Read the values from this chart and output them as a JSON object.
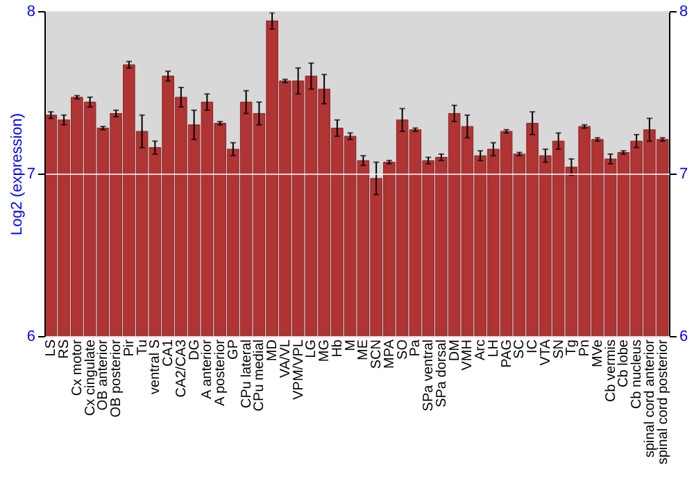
{
  "chart_data": {
    "type": "bar",
    "ylabel": "Log2 (expression)",
    "categories": [
      "LS",
      "RS",
      "Cx motor",
      "Cx cingulate",
      "OB anterior",
      "OB posterior",
      "Pir",
      "Tu",
      "ventral S",
      "CA1",
      "CA2/CA3",
      "DG",
      "A anterior",
      "A posterior",
      "GP",
      "CPu lateral",
      "CPu medial",
      "MD",
      "VA/VL",
      "VPM/VPL",
      "LG",
      "MG",
      "Hb",
      "M",
      "ME",
      "SCN",
      "MPA",
      "SO",
      "Pa",
      "SPa ventral",
      "SPa dorsal",
      "DM",
      "VMH",
      "Arc",
      "LH",
      "PAG",
      "SC",
      "IC",
      "VTA",
      "SN",
      "Tg",
      "Pn",
      "MVe",
      "Cb vermis",
      "Cb lobe",
      "Cb nucleus",
      "spinal cord anterior",
      "spinal cord posterior"
    ],
    "series": [
      {
        "color": "#b03434",
        "values": [
          7.36,
          7.33,
          7.47,
          7.44,
          7.28,
          7.37,
          7.67,
          7.26,
          7.16,
          7.6,
          7.47,
          7.3,
          7.44,
          7.31,
          7.15,
          7.44,
          7.37,
          7.94,
          7.57,
          7.57,
          7.6,
          7.52,
          7.28,
          7.23,
          7.08,
          6.97,
          7.07,
          7.33,
          7.27,
          7.08,
          7.1,
          7.37,
          7.29,
          7.11,
          7.15,
          7.26,
          7.12,
          7.31,
          7.11,
          7.2,
          7.04,
          7.29,
          7.21,
          7.09,
          7.13,
          7.2,
          7.27,
          7.21
        ],
        "errors": [
          0.02,
          0.03,
          0.01,
          0.03,
          0.01,
          0.02,
          0.02,
          0.1,
          0.04,
          0.03,
          0.06,
          0.09,
          0.05,
          0.01,
          0.04,
          0.07,
          0.07,
          0.05,
          0.01,
          0.08,
          0.08,
          0.09,
          0.05,
          0.02,
          0.03,
          0.1,
          0.01,
          0.07,
          0.01,
          0.02,
          0.02,
          0.05,
          0.07,
          0.03,
          0.04,
          0.01,
          0.01,
          0.07,
          0.04,
          0.05,
          0.05,
          0.01,
          0.01,
          0.03,
          0.01,
          0.04,
          0.07,
          0.01
        ]
      }
    ],
    "ylim": [
      6,
      8
    ],
    "yticks": [
      6,
      7,
      8
    ],
    "y2lim": [
      6,
      8
    ],
    "y2ticks": [
      6,
      7,
      8
    ],
    "grid": "y"
  }
}
